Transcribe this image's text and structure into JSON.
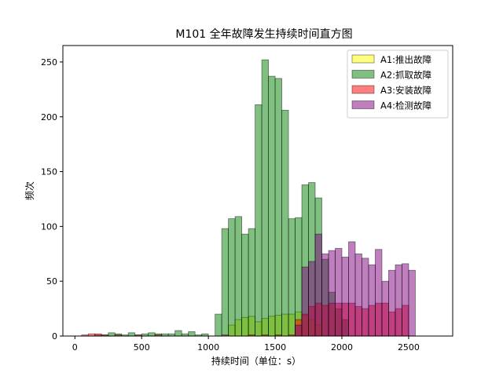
{
  "chart_data": {
    "type": "histogram",
    "title": "M101 全年故障发生持续时间直方图",
    "xlabel": "持续时间（单位：s）",
    "ylabel": "频次",
    "xlim": [
      -90,
      2830
    ],
    "ylim": [
      0,
      265
    ],
    "xticks": [
      0,
      500,
      1000,
      1500,
      2000,
      2500
    ],
    "yticks": [
      0,
      50,
      100,
      150,
      200,
      250
    ],
    "bin_width": 50,
    "legend_position": "top-right",
    "series": [
      {
        "name": "A1:推出故障",
        "color": "#ffff00",
        "alpha": 0.5,
        "bins": [
          [
            1150,
            10
          ],
          [
            1200,
            15
          ],
          [
            1250,
            17
          ],
          [
            1300,
            18
          ],
          [
            1350,
            13
          ],
          [
            1400,
            16
          ],
          [
            1450,
            18
          ],
          [
            1500,
            19
          ],
          [
            1550,
            20
          ],
          [
            1600,
            20
          ],
          [
            1650,
            22
          ],
          [
            1700,
            19
          ],
          [
            1750,
            15
          ],
          [
            1800,
            10
          ]
        ]
      },
      {
        "name": "A2:抓取故障",
        "color": "#008000",
        "alpha": 0.5,
        "bins": [
          [
            150,
            1
          ],
          [
            200,
            1
          ],
          [
            250,
            3
          ],
          [
            300,
            2
          ],
          [
            350,
            1
          ],
          [
            400,
            3
          ],
          [
            450,
            1
          ],
          [
            500,
            2
          ],
          [
            550,
            3
          ],
          [
            600,
            2
          ],
          [
            650,
            2
          ],
          [
            700,
            2
          ],
          [
            750,
            5
          ],
          [
            800,
            2
          ],
          [
            850,
            4
          ],
          [
            900,
            1
          ],
          [
            950,
            2
          ],
          [
            1050,
            20
          ],
          [
            1100,
            98
          ],
          [
            1150,
            107
          ],
          [
            1200,
            109
          ],
          [
            1250,
            93
          ],
          [
            1300,
            98
          ],
          [
            1350,
            211
          ],
          [
            1400,
            252
          ],
          [
            1450,
            237
          ],
          [
            1500,
            235
          ],
          [
            1550,
            206
          ],
          [
            1600,
            107
          ],
          [
            1650,
            108
          ],
          [
            1700,
            138
          ],
          [
            1750,
            140
          ],
          [
            1800,
            126
          ],
          [
            1850,
            70
          ],
          [
            1900,
            40
          ],
          [
            1950,
            25
          ],
          [
            2000,
            15
          ]
        ]
      },
      {
        "name": "A3:安装故障",
        "color": "#ff0000",
        "alpha": 0.5,
        "bins": [
          [
            50,
            1
          ],
          [
            100,
            2
          ],
          [
            150,
            2
          ],
          [
            200,
            1
          ],
          [
            300,
            1
          ],
          [
            450,
            1
          ],
          [
            600,
            1
          ],
          [
            1100,
            1
          ],
          [
            1300,
            1
          ],
          [
            1400,
            1
          ],
          [
            1500,
            1
          ],
          [
            1600,
            1
          ],
          [
            1650,
            15
          ],
          [
            1700,
            20
          ],
          [
            1750,
            27
          ],
          [
            1800,
            30
          ],
          [
            1850,
            28
          ],
          [
            1900,
            30
          ],
          [
            1950,
            30
          ],
          [
            2000,
            30
          ],
          [
            2050,
            30
          ],
          [
            2100,
            27
          ],
          [
            2150,
            25
          ],
          [
            2200,
            28
          ],
          [
            2250,
            30
          ],
          [
            2300,
            30
          ],
          [
            2350,
            22
          ],
          [
            2400,
            25
          ],
          [
            2450,
            28
          ]
        ]
      },
      {
        "name": "A4:检测故障",
        "color": "#800080",
        "alpha": 0.5,
        "bins": [
          [
            1650,
            10
          ],
          [
            1700,
            63
          ],
          [
            1750,
            68
          ],
          [
            1800,
            93
          ],
          [
            1850,
            75
          ],
          [
            1900,
            78
          ],
          [
            1950,
            80
          ],
          [
            2000,
            72
          ],
          [
            2050,
            86
          ],
          [
            2100,
            75
          ],
          [
            2150,
            71
          ],
          [
            2200,
            65
          ],
          [
            2250,
            79
          ],
          [
            2300,
            50
          ],
          [
            2350,
            60
          ],
          [
            2400,
            65
          ],
          [
            2450,
            66
          ],
          [
            2500,
            60
          ]
        ]
      }
    ]
  }
}
